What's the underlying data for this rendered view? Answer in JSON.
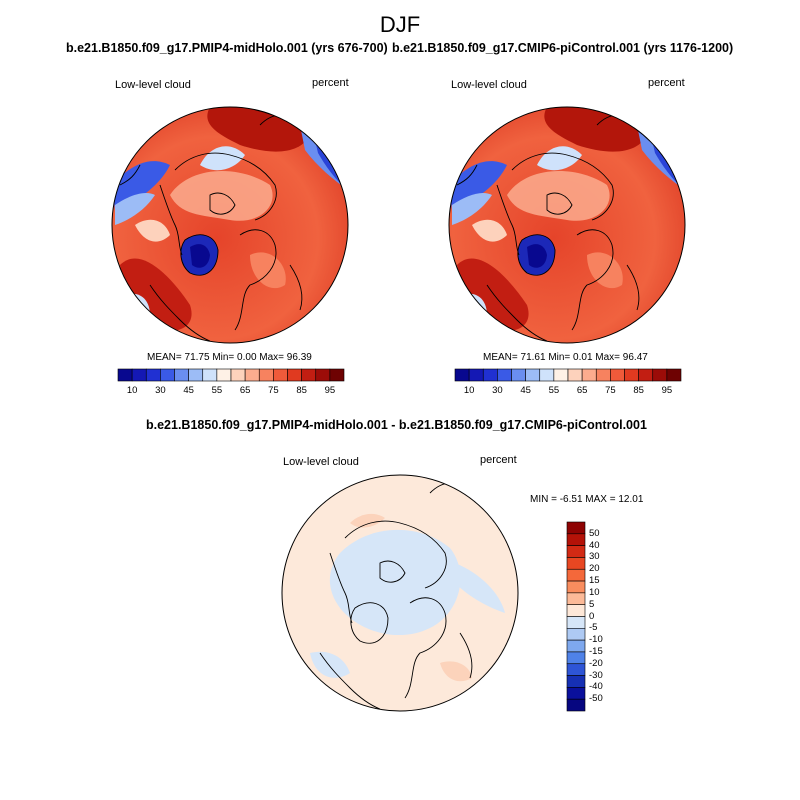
{
  "figure": {
    "title": "DJF"
  },
  "panels": [
    {
      "case": "b.e21.B1850.f09_g17.PMIP4-midHolo.001 (yrs 676-700)",
      "variable": "Low-level cloud",
      "units": "percent",
      "stats_text": "MEAN=  71.75  Min=    0.00  Max=   96.39",
      "stats": {
        "mean": 71.75,
        "min": 0.0,
        "max": 96.39
      }
    },
    {
      "case": "b.e21.B1850.f09_g17.CMIP6-piControl.001 (yrs 1176-1200)",
      "variable": "Low-level cloud",
      "units": "percent",
      "stats_text": "MEAN=  71.61  Min=    0.01  Max=   96.47",
      "stats": {
        "mean": 71.61,
        "min": 0.01,
        "max": 96.47
      }
    }
  ],
  "diff_panel": {
    "case": "b.e21.B1850.f09_g17.PMIP4-midHolo.001 - b.e21.B1850.f09_g17.CMIP6-piControl.001",
    "variable": "Low-level cloud",
    "units": "percent",
    "stats_text": "MIN =  -6.51 MAX =  12.01",
    "stats": {
      "min": -6.51,
      "max": 12.01
    }
  },
  "colorbar_main": {
    "tick_labels": [
      "10",
      "30",
      "45",
      "55",
      "65",
      "75",
      "85",
      "95"
    ],
    "colors": [
      "#08088f",
      "#1418b4",
      "#2030d2",
      "#3a5ae6",
      "#6a8ef0",
      "#9cbcf6",
      "#cfe2fb",
      "#fef1e6",
      "#fdd2bc",
      "#fcac8e",
      "#f7825f",
      "#ef5a3a",
      "#e03a20",
      "#c21e12",
      "#9c0c08",
      "#6e0202"
    ]
  },
  "colorbar_diff": {
    "tick_labels": [
      "50",
      "40",
      "30",
      "20",
      "15",
      "10",
      "5",
      "0",
      "-5",
      "-10",
      "-15",
      "-20",
      "-30",
      "-40",
      "-50"
    ],
    "colors": [
      "#8e0303",
      "#b41208",
      "#d22a14",
      "#e84722",
      "#f4683a",
      "#f98d5e",
      "#fcba98",
      "#fee8d8",
      "#d6e6f8",
      "#aecaf4",
      "#7ea8ee",
      "#4f82e8",
      "#2e55d6",
      "#1630b4",
      "#0a109c",
      "#060680"
    ]
  },
  "chart_data": {
    "type": "heatmap",
    "title": "DJF",
    "projection": "north polar stereographic",
    "maps": [
      {
        "case": "PMIP4-midHolo.001",
        "field": "Low-level cloud",
        "units": "percent",
        "mean": 71.75,
        "min": 0.0,
        "max": 96.39
      },
      {
        "case": "CMIP6-piControl.001",
        "field": "Low-level cloud",
        "units": "percent",
        "mean": 71.61,
        "min": 0.01,
        "max": 96.47
      },
      {
        "case": "PMIP4-midHolo.001 - CMIP6-piControl.001",
        "field": "Low-level cloud",
        "units": "percent",
        "min": -6.51,
        "max": 12.01
      }
    ],
    "main_levels": [
      10,
      30,
      45,
      55,
      65,
      75,
      85,
      95
    ],
    "diff_levels": [
      50,
      40,
      30,
      20,
      15,
      10,
      5,
      0,
      -5,
      -10,
      -15,
      -20,
      -30,
      -40,
      -50
    ]
  }
}
